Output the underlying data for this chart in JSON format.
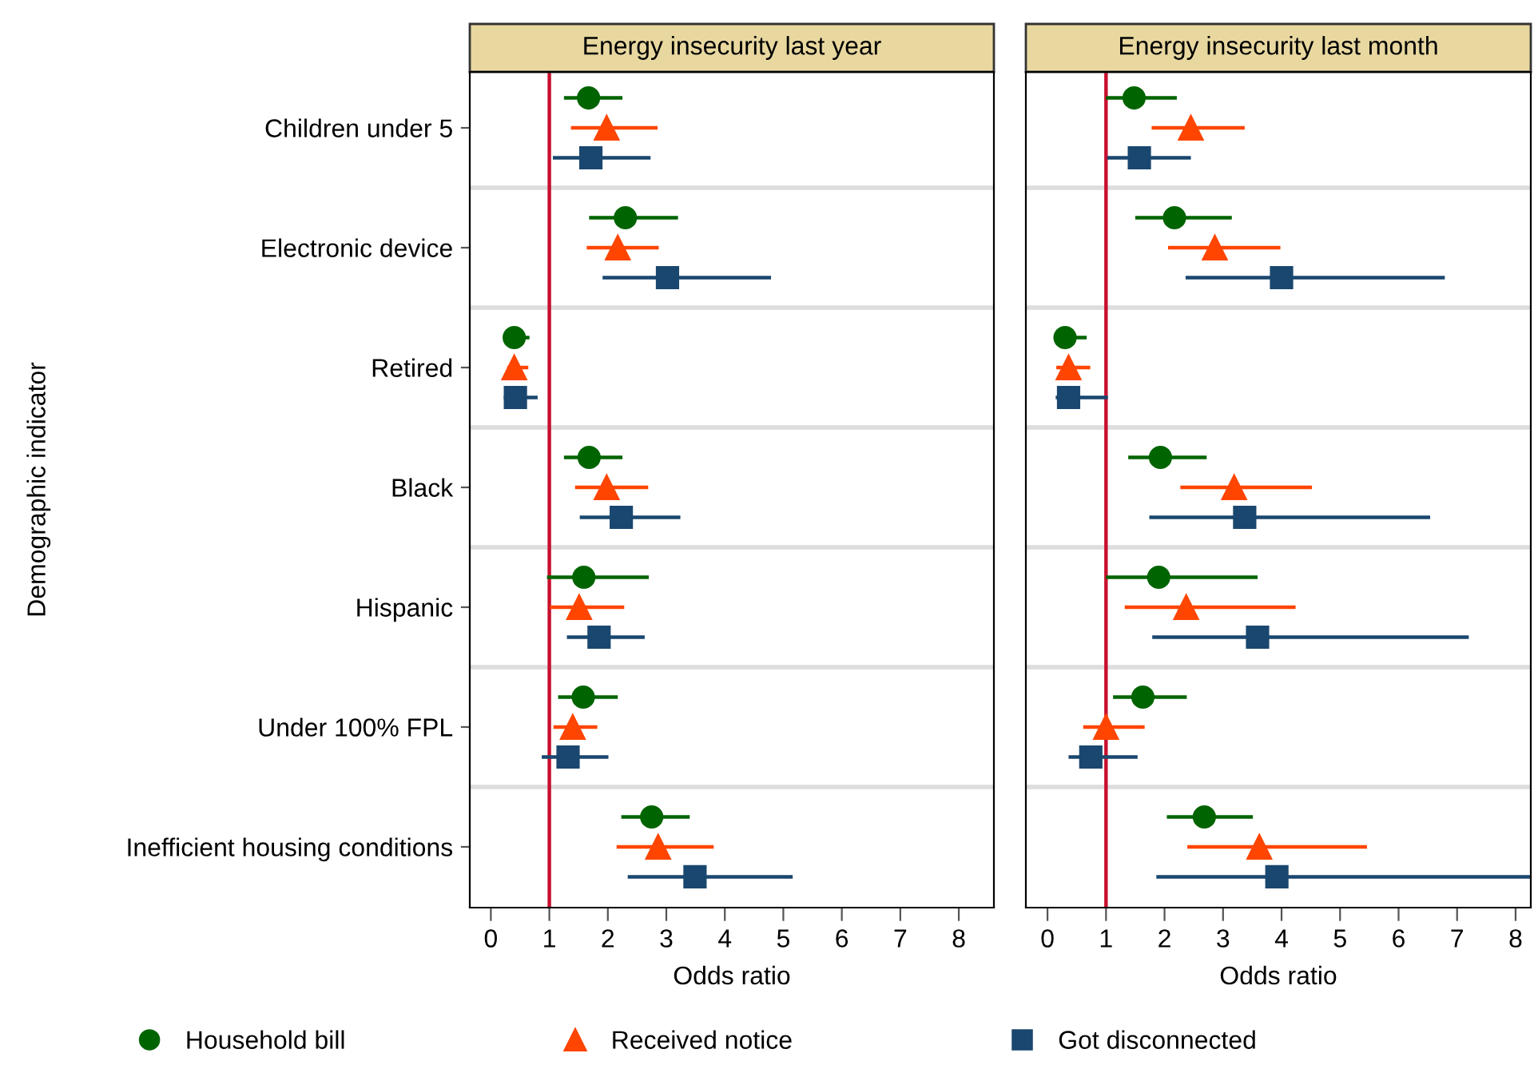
{
  "chart_data": [
    {
      "type": "scatter",
      "orientation": "horizontal",
      "title": "Energy insecurity last year",
      "xlabel": "Odds ratio",
      "ylabel": "Demographic indicator",
      "categories": [
        "Children under 5",
        "Electronic device",
        "Retired",
        "Black",
        "Hispanic",
        "Under 100% FPL",
        "Inefficient housing conditions"
      ],
      "xlim": [
        -0.36,
        8.6
      ],
      "xticks": [
        0,
        1,
        2,
        3,
        4,
        5,
        6,
        7,
        8
      ],
      "grid": "y",
      "legend": "bottom",
      "ref_lines": [
        {
          "axis": "x",
          "value": 1,
          "color": "#c8102e"
        }
      ],
      "series": [
        {
          "name": "Household bill",
          "color": "#006400",
          "marker": "circle",
          "values": [
            1.67,
            2.3,
            0.4,
            1.68,
            1.59,
            1.58,
            2.75
          ],
          "errors": [
            [
              1.25,
              2.25
            ],
            [
              1.68,
              3.2
            ],
            [
              0.3,
              0.66
            ],
            [
              1.25,
              2.25
            ],
            [
              0.96,
              2.7
            ],
            [
              1.15,
              2.17
            ],
            [
              2.23,
              3.4
            ]
          ]
        },
        {
          "name": "Received notice",
          "color": "#ff4500",
          "marker": "triangle",
          "values": [
            1.98,
            2.17,
            0.4,
            1.98,
            1.51,
            1.4,
            2.86
          ],
          "errors": [
            [
              1.37,
              2.85
            ],
            [
              1.64,
              2.87
            ],
            [
              0.28,
              0.64
            ],
            [
              1.44,
              2.69
            ],
            [
              1.01,
              2.28
            ],
            [
              1.07,
              1.82
            ],
            [
              2.15,
              3.81
            ]
          ]
        },
        {
          "name": "Got disconnected",
          "color": "#1a476f",
          "marker": "square",
          "values": [
            1.71,
            3.02,
            0.42,
            2.23,
            1.85,
            1.32,
            3.49
          ],
          "errors": [
            [
              1.06,
              2.73
            ],
            [
              1.91,
              4.79
            ],
            [
              0.22,
              0.8
            ],
            [
              1.52,
              3.24
            ],
            [
              1.3,
              2.63
            ],
            [
              0.87,
              2.01
            ],
            [
              2.34,
              5.16
            ]
          ]
        }
      ]
    },
    {
      "type": "scatter",
      "orientation": "horizontal",
      "title": "Energy insecurity last month",
      "xlabel": "Odds ratio",
      "categories": [
        null,
        null,
        null,
        null,
        null,
        null,
        null
      ],
      "xlim": [
        -0.37,
        8.26
      ],
      "xticks": [
        0,
        1,
        2,
        3,
        4,
        5,
        6,
        7,
        8
      ],
      "grid": "y",
      "tick_labels": "x",
      "ref_lines": [
        {
          "axis": "x",
          "value": 1,
          "color": "#c8102e"
        }
      ],
      "series": [
        {
          "color": "#006400",
          "marker": "circle",
          "values": [
            1.48,
            2.17,
            0.3,
            1.93,
            1.9,
            1.63,
            2.68
          ],
          "errors": [
            [
              1.0,
              2.21
            ],
            [
              1.5,
              3.15
            ],
            [
              0.14,
              0.67
            ],
            [
              1.38,
              2.72
            ],
            [
              1.0,
              3.59
            ],
            [
              1.12,
              2.38
            ],
            [
              2.04,
              3.51
            ]
          ]
        },
        {
          "color": "#ff4500",
          "marker": "triangle",
          "values": [
            2.45,
            2.86,
            0.36,
            3.19,
            2.37,
            1.0,
            3.62
          ],
          "errors": [
            [
              1.78,
              3.37
            ],
            [
              2.06,
              3.98
            ],
            [
              0.15,
              0.73
            ],
            [
              2.27,
              4.52
            ],
            [
              1.32,
              4.24
            ],
            [
              0.61,
              1.66
            ],
            [
              2.39,
              5.46
            ]
          ]
        },
        {
          "color": "#1a476f",
          "marker": "square",
          "values": [
            1.57,
            4.0,
            0.36,
            3.37,
            3.59,
            0.74,
            3.92
          ],
          "errors": [
            [
              1.02,
              2.45
            ],
            [
              2.36,
              6.79
            ],
            [
              0.14,
              1.03
            ],
            [
              1.74,
              6.54
            ],
            [
              1.79,
              7.2
            ],
            [
              0.36,
              1.54
            ],
            [
              1.86,
              8.25
            ]
          ]
        }
      ]
    }
  ]
}
